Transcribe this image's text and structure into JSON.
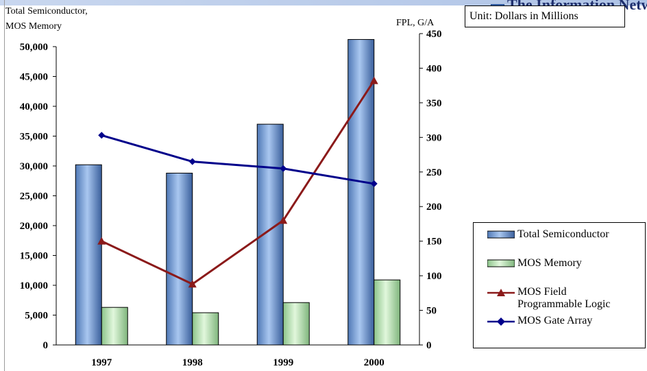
{
  "brand": {
    "text": "The Information Network"
  },
  "unit_label": "Unit: Dollars in Millions",
  "chart_data": {
    "type": "bar",
    "categories": [
      "1997",
      "1998",
      "1999",
      "2000"
    ],
    "left_axis": {
      "label_lines": [
        "Total Semiconductor,",
        "MOS Memory"
      ],
      "range": [
        0,
        50000
      ],
      "ticks": [
        "0",
        "5,000",
        "10,000",
        "15,000",
        "20,000",
        "25,000",
        "30,000",
        "35,000",
        "40,000",
        "45,000",
        "50,000"
      ]
    },
    "right_axis": {
      "label": "FPL, G/A",
      "range": [
        0,
        450
      ],
      "ticks": [
        "0",
        "50",
        "100",
        "150",
        "200",
        "250",
        "300",
        "350",
        "400",
        "450"
      ]
    },
    "series": [
      {
        "name": "Total Semiconductor",
        "kind": "bar",
        "axis": "left",
        "color": "#7fa8e0",
        "values": [
          30200,
          28800,
          37000,
          51200
        ]
      },
      {
        "name": "MOS Memory",
        "kind": "bar",
        "axis": "left",
        "color": "#b8e6b4",
        "values": [
          6300,
          5400,
          7100,
          10900
        ]
      },
      {
        "name": "MOS Field Programmable Logic",
        "legend_lines": [
          "MOS Field",
          "Programmable Logic"
        ],
        "kind": "line",
        "marker": "triangle",
        "axis": "right",
        "color": "#8b1a1a",
        "values": [
          150,
          88,
          180,
          382
        ]
      },
      {
        "name": "MOS Gate Array",
        "kind": "line",
        "marker": "diamond",
        "axis": "right",
        "color": "#00008b",
        "values": [
          303,
          265,
          255,
          233
        ]
      }
    ],
    "grid": false,
    "legend_position": "right"
  }
}
